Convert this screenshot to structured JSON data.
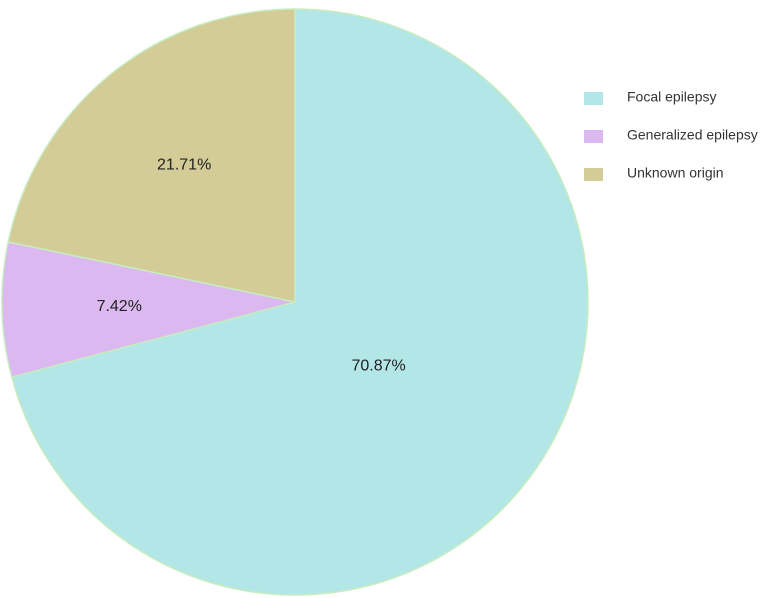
{
  "chart_data": {
    "type": "pie",
    "categories": [
      "Focal epilepsy",
      "Generalized epilepsy",
      "Unknown origin"
    ],
    "values": [
      70.87,
      7.42,
      21.71
    ],
    "value_labels": [
      "70.87%",
      "7.42%",
      "21.71%"
    ],
    "colors": [
      "#b3e6e6",
      "#dbb8ef",
      "#d3cc96"
    ],
    "legend": "top-right"
  }
}
